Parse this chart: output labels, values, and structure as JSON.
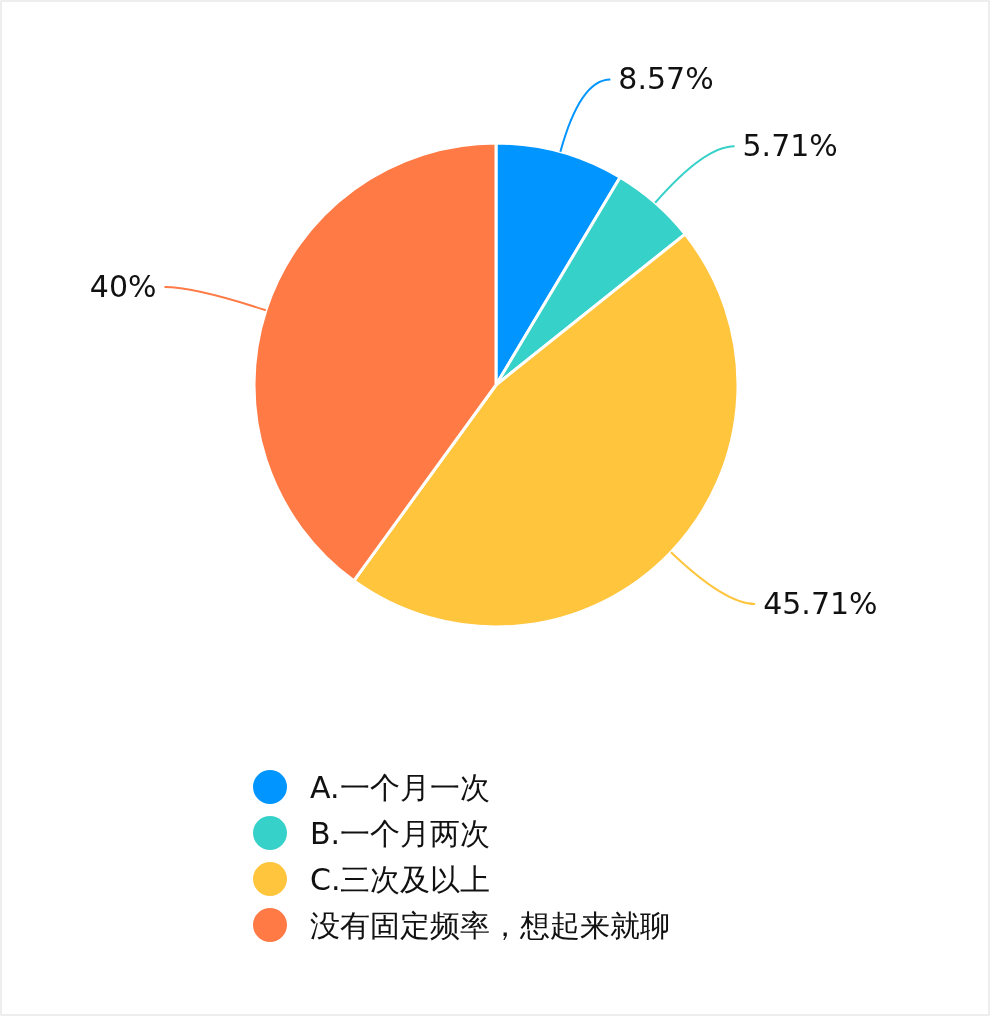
{
  "chart_data": {
    "type": "pie",
    "categories": [
      "A.一个月一次",
      "B.一个月两次",
      "C.三次及以上",
      "没有固定频率，想起来就聊"
    ],
    "values": [
      8.57,
      5.71,
      45.71,
      40
    ],
    "colors": [
      "#0095ff",
      "#36d1c9",
      "#ffc53d",
      "#ff7a45"
    ],
    "value_labels": [
      "8.57%",
      "5.71%",
      "45.71%",
      "40%"
    ],
    "legend": "bottom"
  }
}
